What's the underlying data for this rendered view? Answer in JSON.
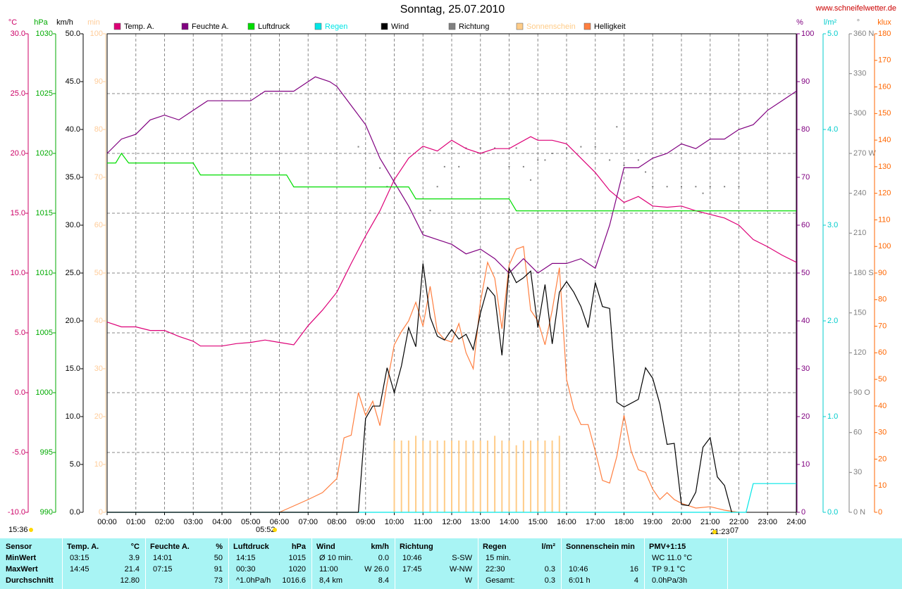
{
  "chart_data": {
    "type": "line",
    "title": "Sonntag, 25.07.2010",
    "source": "www.schneifelwetter.de",
    "xlim": [
      0,
      24
    ],
    "xticks": [
      {
        "value": 0,
        "label": "00:00"
      },
      {
        "value": 1,
        "label": "01:00"
      },
      {
        "value": 2,
        "label": "02:00"
      },
      {
        "value": 3,
        "label": "03:00"
      },
      {
        "value": 4,
        "label": "04:00"
      },
      {
        "value": 5,
        "label": "05:00"
      },
      {
        "value": 6,
        "label": "06:00"
      },
      {
        "value": 7,
        "label": "07:00"
      },
      {
        "value": 8,
        "label": "08:00"
      },
      {
        "value": 9,
        "label": "09:00"
      },
      {
        "value": 10,
        "label": "10:00"
      },
      {
        "value": 11,
        "label": "11:00"
      },
      {
        "value": 12,
        "label": "12:00"
      },
      {
        "value": 13,
        "label": "13:00"
      },
      {
        "value": 14,
        "label": "14:00"
      },
      {
        "value": 15,
        "label": "15:00"
      },
      {
        "value": 16,
        "label": "16:00"
      },
      {
        "value": 17,
        "label": "17:00"
      },
      {
        "value": 18,
        "label": "18:00"
      },
      {
        "value": 19,
        "label": "19:00"
      },
      {
        "value": 20,
        "label": "20:00"
      },
      {
        "value": 21,
        "label": "21:00"
      },
      {
        "value": 22,
        "label": "22:00"
      },
      {
        "value": 23,
        "label": "23:00"
      },
      {
        "value": 24,
        "label": "24:00"
      }
    ],
    "grid": true,
    "axes": [
      {
        "label": "°C",
        "color": "#cc0066",
        "lim": [
          -10,
          30
        ],
        "ticks": [
          {
            "value": -10,
            "label": "-10.0"
          },
          {
            "value": -5,
            "label": "-5.0"
          },
          {
            "value": 0,
            "label": "0.0"
          },
          {
            "value": 5,
            "label": "5.0"
          },
          {
            "value": 10,
            "label": "10.0"
          },
          {
            "value": 15,
            "label": "15.0"
          },
          {
            "value": 20,
            "label": "20.0"
          },
          {
            "value": 25,
            "label": "25.0"
          },
          {
            "value": 30,
            "label": "30.0"
          }
        ]
      },
      {
        "label": "hPa",
        "color": "#00aa00",
        "lim": [
          990,
          1030
        ],
        "ticks": [
          990,
          995,
          1000,
          1005,
          1010,
          1015,
          1020,
          1025,
          1030
        ]
      },
      {
        "label": "km/h",
        "color": "#000000",
        "lim": [
          0,
          50
        ],
        "ticks": [
          {
            "value": 0,
            "label": "0.0"
          },
          {
            "value": 5,
            "label": "5.0"
          },
          {
            "value": 10,
            "label": "10.0"
          },
          {
            "value": 15,
            "label": "15.0"
          },
          {
            "value": 20,
            "label": "20.0"
          },
          {
            "value": 25,
            "label": "25.0"
          },
          {
            "value": 30,
            "label": "30.0"
          },
          {
            "value": 35,
            "label": "35.0"
          },
          {
            "value": 40,
            "label": "40.0"
          },
          {
            "value": 45,
            "label": "45.0"
          },
          {
            "value": 50,
            "label": "50.0"
          }
        ]
      },
      {
        "label": "min",
        "color": "#ffcc99",
        "lim": [
          0,
          100
        ],
        "ticks": [
          0,
          10,
          20,
          30,
          40,
          50,
          60,
          70,
          80,
          90,
          100
        ]
      },
      {
        "label": "%",
        "color": "#800080",
        "lim": [
          0,
          100
        ],
        "ticks": [
          0,
          10,
          20,
          30,
          40,
          50,
          60,
          70,
          80,
          90,
          100
        ]
      },
      {
        "label": "l/m²",
        "color": "#00cccc",
        "lim": [
          0,
          5
        ],
        "ticks": [
          {
            "value": 0,
            "label": "0.0"
          },
          {
            "value": 1,
            "label": "1.0"
          },
          {
            "value": 2,
            "label": "2.0"
          },
          {
            "value": 3,
            "label": "3.0"
          },
          {
            "value": 4,
            "label": "4.0"
          },
          {
            "value": 5,
            "label": "5.0"
          }
        ]
      },
      {
        "label": "°",
        "color": "#808080",
        "lim": [
          0,
          360
        ],
        "ticks": [
          {
            "value": 0,
            "label": "0 N"
          },
          30,
          60,
          {
            "value": 90,
            "label": "90 O"
          },
          120,
          150,
          {
            "value": 180,
            "label": "180 S"
          },
          210,
          240,
          {
            "value": 270,
            "label": "270 W"
          },
          300,
          330,
          {
            "value": 360,
            "label": "360 N"
          }
        ]
      },
      {
        "label": "klux",
        "color": "#ff6600",
        "lim": [
          0,
          180
        ],
        "ticks": [
          0,
          10,
          20,
          30,
          40,
          50,
          60,
          70,
          80,
          90,
          100,
          110,
          120,
          130,
          140,
          150,
          160,
          170,
          180
        ]
      }
    ],
    "series": [
      {
        "name": "Temp. A.",
        "color": "#dd0077",
        "axis": "°C",
        "style": "line",
        "x": [
          0,
          0.5,
          1,
          1.5,
          2,
          2.5,
          3,
          3.25,
          4,
          4.5,
          5,
          5.5,
          6,
          6.5,
          7,
          7.5,
          8,
          8.5,
          9,
          9.5,
          10,
          10.5,
          11,
          11.5,
          12,
          12.5,
          13,
          13.5,
          14,
          14.75,
          15,
          15.5,
          16,
          16.5,
          17,
          17.5,
          18,
          18.5,
          19,
          19.5,
          20,
          20.5,
          21,
          21.5,
          22,
          22.5,
          23,
          23.5,
          24
        ],
        "values": [
          5.9,
          5.5,
          5.5,
          5.2,
          5.2,
          4.7,
          4.3,
          3.9,
          3.9,
          4.1,
          4.2,
          4.4,
          4.2,
          4.0,
          5.6,
          6.9,
          8.4,
          10.8,
          13.1,
          15.2,
          17.8,
          19.6,
          20.6,
          20.2,
          21.1,
          20.4,
          20.0,
          20.4,
          20.4,
          21.4,
          21.1,
          21.1,
          20.8,
          19.6,
          18.4,
          16.9,
          15.9,
          16.4,
          15.6,
          15.5,
          15.6,
          15.2,
          14.9,
          14.6,
          14.0,
          12.8,
          12.2,
          11.5,
          10.9
        ]
      },
      {
        "name": "Feuchte A.",
        "color": "#800080",
        "axis": "%",
        "style": "line",
        "x": [
          0,
          0.5,
          1,
          1.5,
          2,
          2.5,
          3,
          3.5,
          4,
          5,
          5.5,
          6.5,
          7,
          7.25,
          7.75,
          8,
          8.5,
          9,
          9.5,
          10,
          10.5,
          11,
          11.5,
          12,
          12.5,
          13,
          13.5,
          14,
          14.5,
          15,
          15.5,
          16,
          16.5,
          17,
          17.5,
          18,
          18.5,
          19,
          19.5,
          20,
          20.5,
          21,
          21.5,
          22,
          22.5,
          23,
          23.5,
          24
        ],
        "values": [
          75,
          78,
          79,
          82,
          83,
          82,
          84,
          86,
          86,
          86,
          88,
          88,
          90,
          91,
          90,
          89,
          85,
          81,
          74,
          69,
          64,
          58,
          57,
          56,
          54,
          55,
          53,
          50,
          53,
          50,
          52,
          52,
          53,
          51,
          60,
          72,
          72,
          74,
          75,
          77,
          76,
          78,
          78,
          80,
          81,
          84,
          86,
          88
        ]
      },
      {
        "name": "Luftdruck",
        "color": "#00dd00",
        "axis": "hPa",
        "style": "line",
        "x": [
          0,
          0.3,
          0.5,
          0.75,
          3,
          3.25,
          6.25,
          6.5,
          10.5,
          10.75,
          14,
          14.25,
          24
        ],
        "values": [
          1019.2,
          1019.2,
          1020,
          1019.2,
          1019.2,
          1018.2,
          1018.2,
          1017.2,
          1017.2,
          1016.2,
          1016.2,
          1015.2,
          1015.2
        ]
      },
      {
        "name": "Regen",
        "color": "#00e6e6",
        "axis": "l/m²",
        "style": "line",
        "x": [
          0,
          22.25,
          22.5,
          24
        ],
        "values": [
          0,
          0,
          0.3,
          0.3
        ]
      },
      {
        "name": "Wind",
        "color": "#000000",
        "axis": "km/h",
        "style": "line",
        "x": [
          0,
          8.75,
          9,
          9.25,
          9.5,
          9.75,
          10,
          10.25,
          10.5,
          10.75,
          11,
          11.25,
          11.5,
          11.75,
          12,
          12.25,
          12.5,
          12.75,
          13,
          13.25,
          13.5,
          13.75,
          14,
          14.25,
          14.5,
          14.75,
          15,
          15.25,
          15.5,
          15.75,
          16,
          16.25,
          16.5,
          16.75,
          17,
          17.25,
          17.5,
          17.75,
          18,
          18.5,
          18.75,
          19,
          19.25,
          19.5,
          19.75,
          20,
          20.25,
          20.5,
          20.75,
          21,
          21.25,
          21.5,
          21.75
        ],
        "values": [
          0,
          0,
          9.8,
          11.1,
          11.1,
          15.1,
          12.5,
          15.3,
          19.3,
          17.3,
          26.0,
          20.4,
          18.4,
          18.0,
          19.1,
          18.1,
          18.6,
          17.0,
          20.8,
          23.5,
          22.6,
          16.4,
          25.5,
          24.0,
          24.5,
          25.2,
          19.3,
          23.8,
          17.6,
          23.0,
          24.1,
          23.0,
          21.5,
          19.3,
          24.0,
          21.5,
          21.3,
          11.5,
          11.0,
          11.8,
          15.1,
          14.0,
          11.3,
          7.1,
          7.2,
          0.8,
          0.7,
          2.1,
          6.8,
          7.8,
          3.7,
          2.8,
          0
        ]
      },
      {
        "name": "Richtung",
        "color": "#808080",
        "axis": "°",
        "style": "dots",
        "x": [
          8.75,
          9.5,
          9.75,
          10,
          11,
          11.25,
          11.5,
          11.75,
          12,
          12.25,
          12.5,
          13,
          13.5,
          14,
          14.25,
          14.5,
          14.75,
          15,
          15.25,
          15.5,
          16,
          16.5,
          17,
          17.5,
          17.75,
          18,
          18.5,
          18.75,
          19,
          19.5,
          20,
          20.5,
          20.75,
          21,
          21.5,
          22
        ],
        "values": [
          275,
          259,
          245,
          250,
          211,
          227,
          245,
          260,
          274,
          260,
          274,
          274,
          274,
          260,
          274,
          260,
          250,
          265,
          265,
          270,
          274,
          275,
          275,
          265,
          290,
          261,
          265,
          256,
          245,
          245,
          245,
          245,
          240,
          245,
          245,
          245
        ]
      },
      {
        "name": "Sonnenschein",
        "color": "#ffcc88",
        "axis": "min",
        "style": "spikes",
        "x": [
          10,
          10.25,
          10.5,
          10.75,
          11,
          11.25,
          11.5,
          11.75,
          12,
          12.25,
          12.5,
          12.75,
          13,
          13.25,
          13.5,
          13.75,
          14,
          14.25,
          14.5,
          14.75,
          15,
          15.25,
          15.5,
          15.75
        ],
        "values": [
          15,
          15,
          15,
          16,
          15,
          15,
          15,
          15,
          15,
          15,
          15,
          15,
          15,
          15,
          16,
          15,
          15,
          14,
          15,
          15,
          15,
          15,
          15,
          16
        ]
      },
      {
        "name": "Helligkeit",
        "color": "#ff7f40",
        "axis": "klux",
        "style": "line",
        "x": [
          6,
          7,
          7.5,
          8,
          8.25,
          8.5,
          8.75,
          9,
          9.25,
          9.5,
          9.75,
          10,
          10.25,
          10.5,
          10.75,
          11,
          11.25,
          11.5,
          11.75,
          12,
          12.25,
          12.5,
          12.75,
          13,
          13.25,
          13.5,
          13.75,
          14,
          14.25,
          14.5,
          14.75,
          15,
          15.25,
          15.5,
          15.75,
          16,
          16.25,
          16.5,
          16.75,
          17,
          17.25,
          17.5,
          17.75,
          18,
          18.25,
          18.5,
          18.75,
          19,
          19.25,
          19.5,
          19.75,
          20,
          20.5,
          21,
          21.5,
          22
        ],
        "values": [
          0,
          4.8,
          7.4,
          12.7,
          28,
          29,
          45,
          36.5,
          41.8,
          32.6,
          48.4,
          63,
          68,
          72,
          79,
          70,
          85,
          68,
          65,
          64,
          71,
          60,
          54,
          79,
          94,
          88,
          69,
          93,
          99,
          100,
          76,
          72,
          63,
          76,
          92,
          50,
          39,
          33,
          33,
          23,
          12,
          11,
          21,
          36.5,
          23,
          16,
          15,
          8.7,
          4.8,
          7.4,
          4.8,
          3.4,
          1.6,
          2.1,
          0.8,
          0
        ]
      }
    ],
    "annotations": [
      "15:36",
      "05:52",
      "21:23",
      "07"
    ]
  },
  "stats_table": {
    "row_labels": [
      "Sensor",
      "MinWert",
      "MaxWert",
      "Durchschnitt"
    ],
    "columns": [
      {
        "title": "Temp. A.",
        "unit": "°C",
        "rows": [
          {
            "time": "03:15",
            "value": "3.9"
          },
          {
            "time": "14:45",
            "value": "21.4"
          },
          {
            "value": "12.80"
          }
        ]
      },
      {
        "title": "Feuchte A.",
        "unit": "%",
        "rows": [
          {
            "time": "14:01",
            "value": "50"
          },
          {
            "time": "07:15",
            "value": "91"
          },
          {
            "value": "73"
          }
        ]
      },
      {
        "title": "Luftdruck",
        "unit": "hPa",
        "rows": [
          {
            "time": "14:15",
            "value": "1015"
          },
          {
            "time": "00:30",
            "value": "1020"
          },
          {
            "time": "^1.0hPa/h",
            "value": "1016.6"
          }
        ]
      },
      {
        "title": "Wind",
        "unit": "km/h",
        "rows": [
          {
            "time": "Ø 10 min.",
            "value": "0.0"
          },
          {
            "time": "11:00",
            "value": "W 26.0"
          },
          {
            "time": "8,4 km",
            "value": "8.4"
          }
        ]
      },
      {
        "title": "Richtung",
        "rows": [
          {
            "time": "10:46",
            "value": "S-SW"
          },
          {
            "time": "17:45",
            "value": "W-NW"
          },
          {
            "value": "W"
          }
        ]
      },
      {
        "title": "Regen",
        "unit": "l/m²",
        "rows": [
          {
            "time": "15 min."
          },
          {
            "time": "22:30",
            "value": "0.3"
          },
          {
            "time": "Gesamt:",
            "value": "0.3"
          }
        ]
      },
      {
        "title": "Sonnenschein min",
        "rows": [
          {},
          {
            "time": "10:46",
            "value": "16"
          },
          {
            "time": "6:01 h",
            "value": "4"
          }
        ]
      },
      {
        "title": "PMV+1:15",
        "rows": [
          {
            "time": "WC 11.0 °C"
          },
          {
            "time": "TP 9.1 °C"
          },
          {
            "time": "0.0hPa/3h"
          }
        ]
      }
    ]
  }
}
